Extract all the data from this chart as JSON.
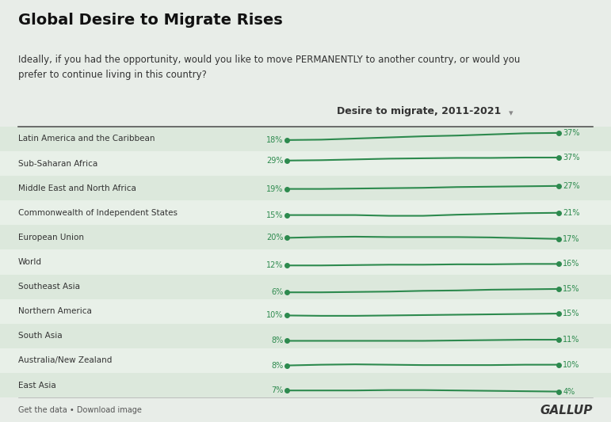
{
  "title": "Global Desire to Migrate Rises",
  "subtitle": "Ideally, if you had the opportunity, would you like to move PERMANENTLY to another country, or would you\nprefer to continue living in this country?",
  "chart_label": "Desire to migrate, 2011-2021",
  "background_color": "#e8ede8",
  "row_colors": [
    "#dce8dc",
    "#e8f0e8"
  ],
  "line_color": "#2d8a4e",
  "dot_color": "#2d8a4e",
  "text_color": "#2d8a4e",
  "label_color": "#333333",
  "title_color": "#111111",
  "subtitle_color": "#333333",
  "regions": [
    "Latin America and the Caribbean",
    "Sub-Saharan Africa",
    "Middle East and North Africa",
    "Commonwealth of Independent States",
    "European Union",
    "World",
    "Southeast Asia",
    "Northern America",
    "South Asia",
    "Australia/New Zealand",
    "East Asia"
  ],
  "start_values": [
    18,
    29,
    19,
    15,
    20,
    12,
    6,
    10,
    8,
    8,
    7
  ],
  "end_values": [
    37,
    37,
    27,
    21,
    17,
    16,
    15,
    15,
    11,
    10,
    4
  ],
  "line_data": [
    [
      18,
      19,
      22,
      25,
      28,
      30,
      33,
      36,
      37
    ],
    [
      29,
      30,
      32,
      34,
      35,
      36,
      36,
      37,
      37
    ],
    [
      19,
      19,
      20,
      21,
      22,
      24,
      25,
      26,
      27
    ],
    [
      15,
      15,
      15,
      13,
      13,
      16,
      18,
      20,
      21
    ],
    [
      20,
      22,
      23,
      22,
      22,
      22,
      21,
      19,
      17
    ],
    [
      12,
      12,
      13,
      14,
      14,
      15,
      15,
      16,
      16
    ],
    [
      6,
      6,
      7,
      8,
      10,
      11,
      13,
      14,
      15
    ],
    [
      10,
      9,
      9,
      10,
      11,
      12,
      13,
      14,
      15
    ],
    [
      8,
      8,
      8,
      8,
      8,
      9,
      10,
      11,
      11
    ],
    [
      8,
      10,
      11,
      10,
      9,
      9,
      9,
      10,
      10
    ],
    [
      7,
      7,
      7,
      8,
      8,
      7,
      6,
      5,
      4
    ]
  ],
  "x_positions": [
    0,
    1,
    2,
    3,
    4,
    5,
    6,
    7,
    8
  ],
  "footer_left": "Get the data • Download image",
  "footer_right": "GALLUP"
}
